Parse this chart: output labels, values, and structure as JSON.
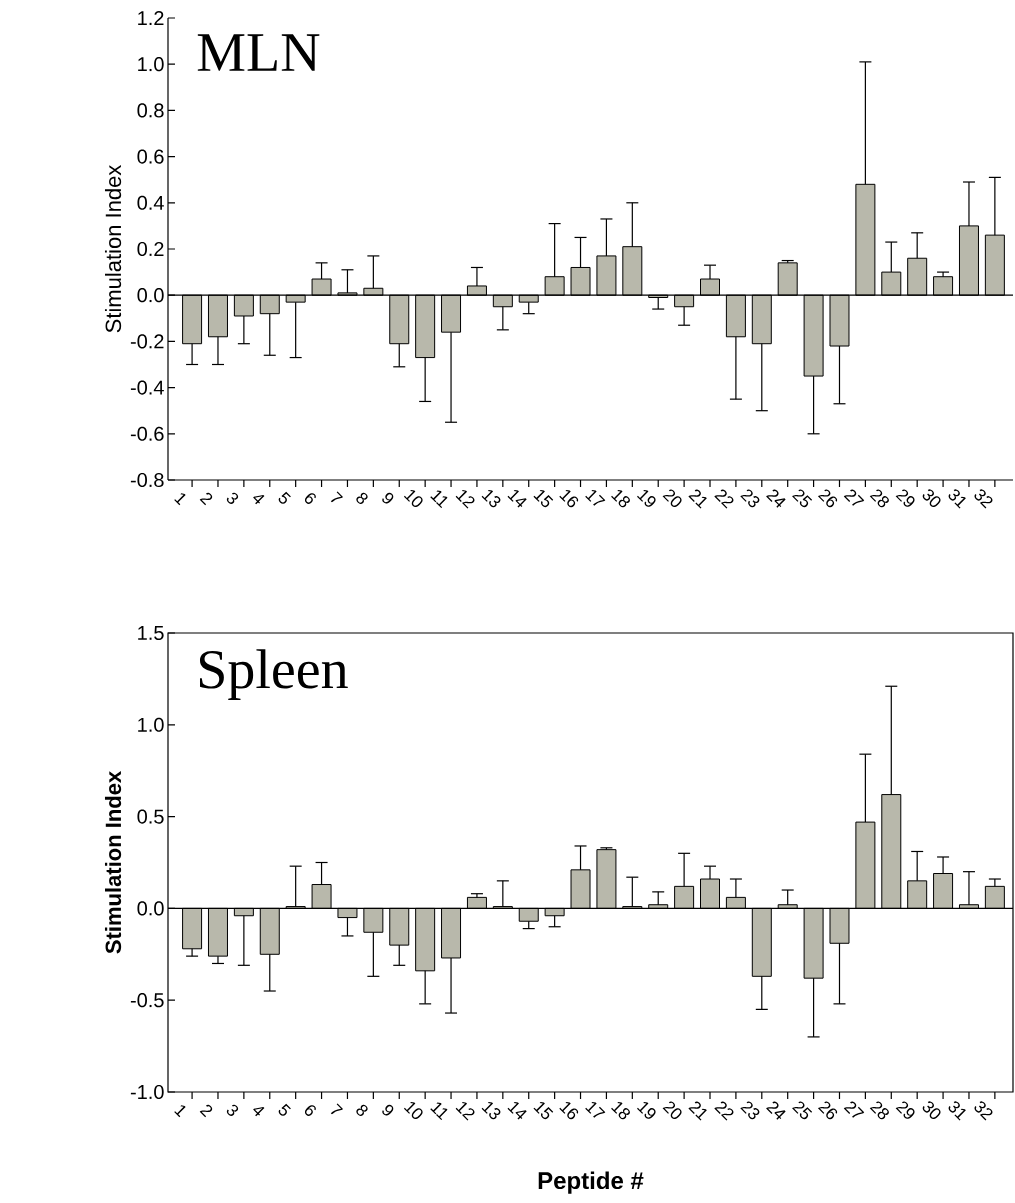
{
  "chart_data": [
    {
      "type": "bar",
      "title": "MLN",
      "ylabel": "Stimulation Index",
      "color": "#b8b8ab",
      "categories": [
        "1",
        "2",
        "3",
        "4",
        "5",
        "6",
        "7",
        "8",
        "9",
        "10",
        "11",
        "12",
        "13",
        "14",
        "15",
        "16",
        "17",
        "18",
        "19",
        "20",
        "21",
        "22",
        "23",
        "24",
        "25",
        "26",
        "27",
        "28",
        "29",
        "30",
        "31",
        "32"
      ],
      "values": [
        -0.21,
        -0.18,
        -0.09,
        -0.08,
        -0.03,
        0.07,
        0.01,
        0.03,
        -0.21,
        -0.27,
        -0.16,
        0.04,
        -0.05,
        -0.03,
        0.08,
        0.12,
        0.17,
        0.21,
        -0.01,
        -0.05,
        0.07,
        -0.18,
        -0.21,
        0.14,
        -0.35,
        -0.22,
        0.48,
        0.1,
        0.16,
        0.08,
        0.3,
        0.26
      ],
      "errors": [
        [
          -0.3,
          -0.21
        ],
        [
          -0.3,
          -0.18
        ],
        [
          -0.21,
          -0.09
        ],
        [
          -0.26,
          -0.08
        ],
        [
          -0.27,
          -0.03
        ],
        [
          0.07,
          0.14
        ],
        [
          0.01,
          0.11
        ],
        [
          0.03,
          0.17
        ],
        [
          -0.31,
          -0.21
        ],
        [
          -0.46,
          -0.27
        ],
        [
          -0.55,
          -0.16
        ],
        [
          0.04,
          0.12
        ],
        [
          -0.15,
          -0.05
        ],
        [
          -0.08,
          -0.03
        ],
        [
          0.08,
          0.31
        ],
        [
          0.12,
          0.25
        ],
        [
          0.17,
          0.33
        ],
        [
          0.21,
          0.4
        ],
        [
          -0.06,
          -0.01
        ],
        [
          -0.13,
          -0.05
        ],
        [
          0.07,
          0.13
        ],
        [
          -0.45,
          -0.18
        ],
        [
          -0.5,
          -0.21
        ],
        [
          0.14,
          0.15
        ],
        [
          -0.6,
          -0.35
        ],
        [
          -0.47,
          -0.22
        ],
        [
          0.48,
          1.01
        ],
        [
          0.1,
          0.23
        ],
        [
          0.16,
          0.27
        ],
        [
          0.08,
          0.1
        ],
        [
          0.3,
          0.49
        ],
        [
          0.26,
          0.51
        ]
      ],
      "ylim": [
        -0.8,
        1.2
      ],
      "yticks": [
        {
          "value": -0.8,
          "label": "-0.8"
        },
        {
          "value": -0.6,
          "label": "-0.6"
        },
        {
          "value": -0.4,
          "label": "-0.4"
        },
        {
          "value": -0.2,
          "label": "-0.2"
        },
        {
          "value": 0,
          "label": "0.0"
        },
        {
          "value": 0.2,
          "label": "0.2"
        },
        {
          "value": 0.4,
          "label": "0.4"
        },
        {
          "value": 0.6,
          "label": "0.6"
        },
        {
          "value": 0.8,
          "label": "0.8"
        },
        {
          "value": 1.0,
          "label": "1.0"
        },
        {
          "value": 1.2,
          "label": "1.2"
        }
      ],
      "ref_lines": [
        {
          "axis": "y",
          "value": 0
        }
      ]
    },
    {
      "type": "bar",
      "title": "Spleen",
      "ylabel": "Stimulation Index",
      "xlabel": "Peptide #",
      "color": "#b8b8ab",
      "categories": [
        "1",
        "2",
        "3",
        "4",
        "5",
        "6",
        "7",
        "8",
        "9",
        "10",
        "11",
        "12",
        "13",
        "14",
        "15",
        "16",
        "17",
        "18",
        "19",
        "20",
        "21",
        "22",
        "23",
        "24",
        "25",
        "26",
        "27",
        "28",
        "29",
        "30",
        "31",
        "32"
      ],
      "values": [
        -0.22,
        -0.26,
        -0.04,
        -0.25,
        0.01,
        0.13,
        -0.05,
        -0.13,
        -0.2,
        -0.34,
        -0.27,
        0.06,
        0.01,
        -0.07,
        -0.04,
        0.21,
        0.32,
        0.01,
        0.02,
        0.12,
        0.16,
        0.06,
        -0.37,
        0.02,
        -0.38,
        -0.19,
        0.47,
        0.62,
        0.15,
        0.19,
        0.02,
        0.12
      ],
      "errors": [
        [
          -0.26,
          -0.22
        ],
        [
          -0.3,
          -0.26
        ],
        [
          -0.31,
          -0.04
        ],
        [
          -0.45,
          -0.25
        ],
        [
          0.01,
          0.23
        ],
        [
          0.13,
          0.25
        ],
        [
          -0.15,
          -0.05
        ],
        [
          -0.37,
          -0.13
        ],
        [
          -0.31,
          -0.2
        ],
        [
          -0.52,
          -0.34
        ],
        [
          -0.57,
          -0.27
        ],
        [
          0.06,
          0.08
        ],
        [
          0.01,
          0.15
        ],
        [
          -0.11,
          -0.07
        ],
        [
          -0.1,
          -0.04
        ],
        [
          0.21,
          0.34
        ],
        [
          0.32,
          0.33
        ],
        [
          0.01,
          0.17
        ],
        [
          0.02,
          0.09
        ],
        [
          0.12,
          0.3
        ],
        [
          0.16,
          0.23
        ],
        [
          0.06,
          0.16
        ],
        [
          -0.55,
          -0.37
        ],
        [
          0.02,
          0.1
        ],
        [
          -0.7,
          -0.38
        ],
        [
          -0.52,
          -0.19
        ],
        [
          0.47,
          0.84
        ],
        [
          0.62,
          1.21
        ],
        [
          0.15,
          0.31
        ],
        [
          0.19,
          0.28
        ],
        [
          0.02,
          0.2
        ],
        [
          0.12,
          0.16
        ]
      ],
      "ylim": [
        -1.0,
        1.5
      ],
      "yticks": [
        {
          "value": -1.0,
          "label": "-1.0"
        },
        {
          "value": -0.5,
          "label": "-0.5"
        },
        {
          "value": 0,
          "label": "0.0"
        },
        {
          "value": 0.5,
          "label": "0.5"
        },
        {
          "value": 1.0,
          "label": "1.0"
        },
        {
          "value": 1.5,
          "label": "1.5"
        }
      ],
      "ref_lines": [
        {
          "axis": "y",
          "value": 0
        }
      ]
    }
  ]
}
